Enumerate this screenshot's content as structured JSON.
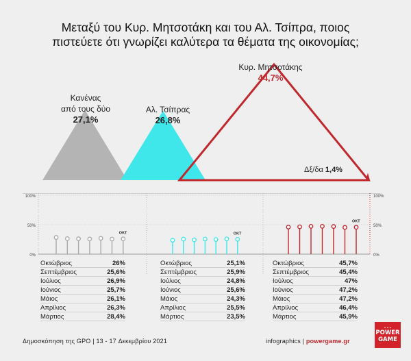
{
  "title_line1": "Μεταξύ του Κυρ. Μητσοτάκη και του Αλ. Τσίπρα, ποιος",
  "title_line2": "πιστεύετε ότι γνωρίζει καλύτερα τα θέματα της οικονομίας;",
  "colors": {
    "none": "#b4b4b4",
    "tsipras": "#3fe6ea",
    "mitsotakis": "#c0282e",
    "dots_none": "#aaaaaa",
    "dots_tsipras": "#3fe6ea",
    "dots_mitsotakis": "#c0282e"
  },
  "labels": {
    "none_line1": "Κανένας",
    "none_line2": "από τους δύο",
    "none_pct": "27,1%",
    "tsipras_name": "Αλ. Τσίπρας",
    "tsipras_pct": "26,8%",
    "mitsotakis_name": "Κυρ. Μητσοτάκης",
    "mitsotakis_pct": "44,7%",
    "dk_label": "Δξ/δα",
    "dk_pct": "1,4%"
  },
  "axis": {
    "t100": "100%",
    "t50": "50%",
    "t0": "0%",
    "start_marker": "ΟΚΤ"
  },
  "chart_data": [
    {
      "type": "pie",
      "title": "Μεταξύ του Κυρ. Μητσοτάκη και του Αλ. Τσίπρα, ποιος πιστεύετε ότι γνωρίζει καλύτερα τα θέματα της οικονομίας;",
      "categories": [
        "Κυρ. Μητσοτάκης",
        "Κανένας από τους δύο",
        "Αλ. Τσίπρας",
        "Δξ/δα"
      ],
      "values": [
        44.7,
        27.1,
        26.8,
        1.4
      ]
    },
    {
      "type": "scatter",
      "ylim": [
        0,
        100
      ],
      "yticks": [
        "0%",
        "50%",
        "100%"
      ],
      "categories": [
        "Οκτώβριος",
        "Σεπτέμβριος",
        "Ιούλιος",
        "Ιούνιος",
        "Μάιος",
        "Απρίλιος",
        "Μάρτιος"
      ],
      "series": [
        {
          "name": "Κανένας από τους δύο",
          "values": [
            26,
            25.6,
            26.9,
            25.7,
            26.1,
            26.3,
            28.4
          ],
          "labels": [
            "26%",
            "25,6%",
            "26,9%",
            "25,7%",
            "26,1%",
            "26,3%",
            "28,4%"
          ]
        },
        {
          "name": "Αλ. Τσίπρας",
          "values": [
            25.1,
            25.9,
            24.8,
            25.6,
            24.3,
            25.5,
            23.5
          ],
          "labels": [
            "25,1%",
            "25,9%",
            "24,8%",
            "25,6%",
            "24,3%",
            "25,5%",
            "23,5%"
          ]
        },
        {
          "name": "Κυρ. Μητσοτάκης",
          "values": [
            45.7,
            45.4,
            47,
            47.2,
            47.2,
            46.4,
            45.9
          ],
          "labels": [
            "45,7%",
            "45,4%",
            "47%",
            "47,2%",
            "47,2%",
            "46,4%",
            "45,9%"
          ]
        }
      ]
    }
  ],
  "footer": {
    "survey": "Δημοσκόπηση της GPO | 13 - 17 Δεκεμβρίου 2021",
    "credit": "infographics | ",
    "site": "powergame.gr"
  },
  "logo": {
    "top": "• • •",
    "line1": "POWER",
    "line2": "GAME"
  }
}
